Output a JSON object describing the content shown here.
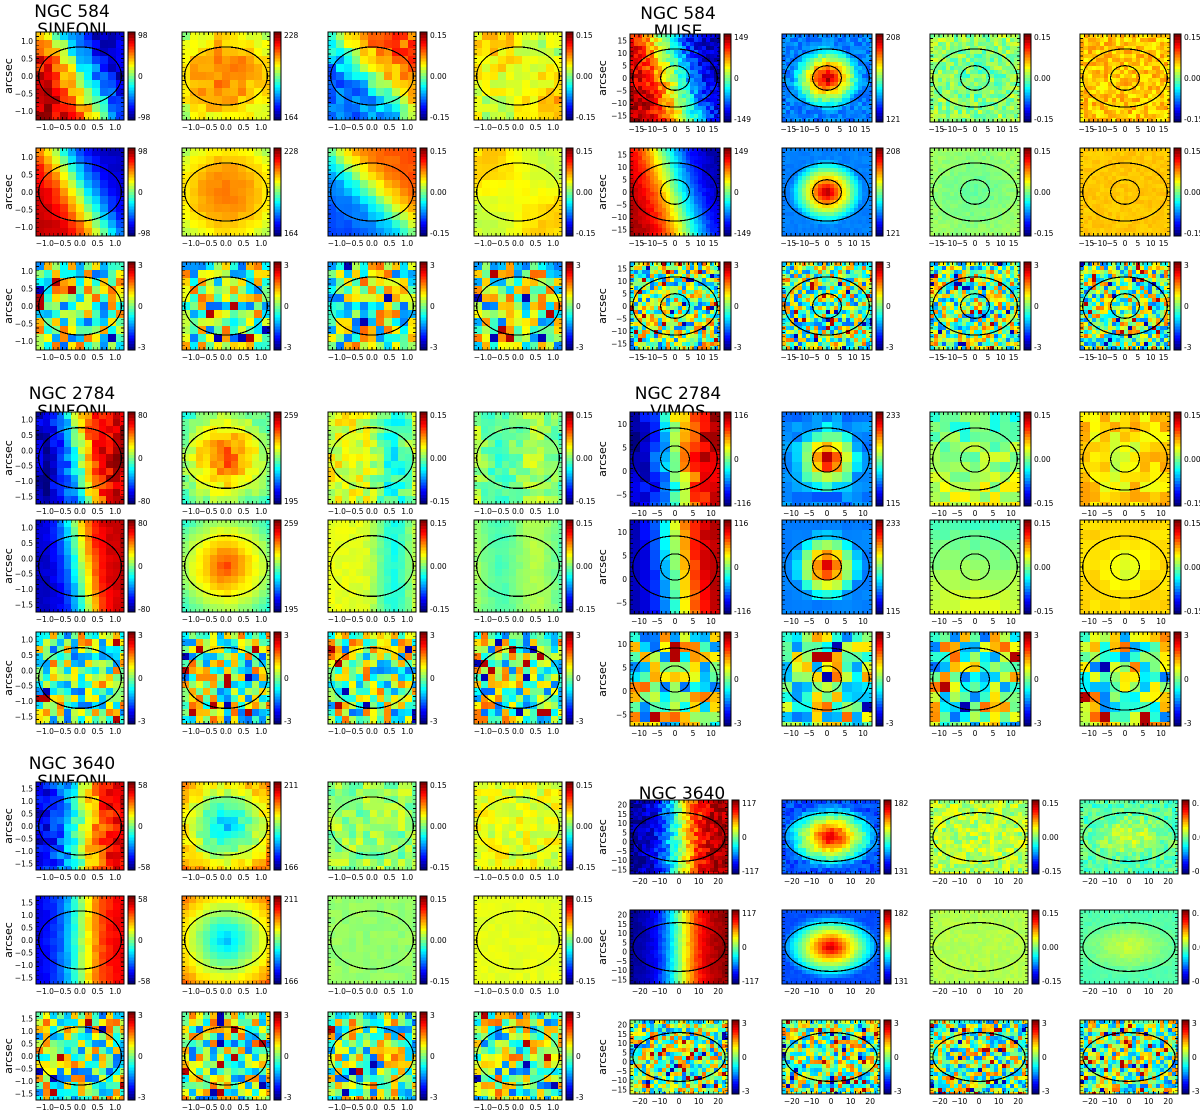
{
  "figure": {
    "ylabel": "arcsec",
    "colormap_hint": "jet",
    "row_labels_note": "",
    "blocks": [
      {
        "id": "ngc584-sinfoni",
        "title_line1": "NGC 584",
        "title_line2": "SINFONI",
        "x_ticks": [
          "−1.0",
          "−0.5",
          "0.0",
          "0.5",
          "1.0"
        ],
        "y_ticks": [
          "1.0",
          "0.5",
          "0.0",
          "−0.5",
          "−1.0"
        ],
        "colorbars": [
          {
            "top": "98",
            "mid": "0",
            "bot": "-98"
          },
          {
            "top": "228",
            "mid": "",
            "bot": "164"
          },
          {
            "top": "0.15",
            "mid": "0.00",
            "bot": "-0.15"
          },
          {
            "top": "0.15",
            "mid": "0.00",
            "bot": "-0.15"
          }
        ],
        "residual_colorbar": {
          "top": "3",
          "mid": "0",
          "bot": "-3"
        }
      },
      {
        "id": "ngc584-muse",
        "title_line1": "NGC 584",
        "title_line2": "MUSE",
        "x_ticks": [
          "−15",
          "−10",
          "−5",
          "0",
          "5",
          "10",
          "15"
        ],
        "y_ticks": [
          "15",
          "10",
          "5",
          "0",
          "−5",
          "−10",
          "−15"
        ],
        "colorbars": [
          {
            "top": "149",
            "mid": "0",
            "bot": "-149"
          },
          {
            "top": "208",
            "mid": "",
            "bot": "121"
          },
          {
            "top": "0.15",
            "mid": "0.00",
            "bot": "-0.15"
          },
          {
            "top": "0.15",
            "mid": "0.00",
            "bot": "-0.15"
          }
        ],
        "residual_colorbar": {
          "top": "3",
          "mid": "0",
          "bot": "-3"
        }
      },
      {
        "id": "ngc2784-sinfoni",
        "title_line1": "NGC 2784",
        "title_line2": "SINFONI",
        "x_ticks": [
          "−1.0",
          "−0.5",
          "0.0",
          "0.5",
          "1.0"
        ],
        "y_ticks": [
          "1.0",
          "0.5",
          "0.0",
          "−0.5",
          "−1.0",
          "−1.5"
        ],
        "colorbars": [
          {
            "top": "80",
            "mid": "0",
            "bot": "-80"
          },
          {
            "top": "259",
            "mid": "",
            "bot": "195"
          },
          {
            "top": "0.15",
            "mid": "0.00",
            "bot": "-0.15"
          },
          {
            "top": "0.15",
            "mid": "0.00",
            "bot": "-0.15"
          }
        ],
        "residual_colorbar": {
          "top": "3",
          "mid": "0",
          "bot": "-3"
        }
      },
      {
        "id": "ngc2784-vimos",
        "title_line1": "NGC 2784",
        "title_line2": "VIMOS",
        "x_ticks": [
          "−10",
          "−5",
          "0",
          "5",
          "10"
        ],
        "y_ticks": [
          "10",
          "5",
          "0",
          "−5"
        ],
        "colorbars": [
          {
            "top": "116",
            "mid": "0",
            "bot": "-116"
          },
          {
            "top": "233",
            "mid": "",
            "bot": "115"
          },
          {
            "top": "0.15",
            "mid": "0.00",
            "bot": "-0.15"
          },
          {
            "top": "0.15",
            "mid": "0.00",
            "bot": "-0.15"
          }
        ],
        "residual_colorbar": {
          "top": "3",
          "mid": "0",
          "bot": "-3"
        }
      },
      {
        "id": "ngc3640-sinfoni",
        "title_line1": "NGC 3640",
        "title_line2": "SINFONI",
        "x_ticks": [
          "−1.0",
          "−0.5",
          "0.0",
          "0.5",
          "1.0"
        ],
        "y_ticks": [
          "1.5",
          "1.0",
          "0.5",
          "0.0",
          "−0.5",
          "−1.0",
          "−1.5"
        ],
        "colorbars": [
          {
            "top": "58",
            "mid": "0",
            "bot": "-58"
          },
          {
            "top": "211",
            "mid": "",
            "bot": "166"
          },
          {
            "top": "0.15",
            "mid": "0.00",
            "bot": "-0.15"
          },
          {
            "top": "0.15",
            "mid": "0.00",
            "bot": "-0.15"
          }
        ],
        "residual_colorbar": {
          "top": "3",
          "mid": "0",
          "bot": "-3"
        }
      },
      {
        "id": "ngc3640-wide",
        "title_line1": "NGC 3640",
        "title_line2": "",
        "x_ticks": [
          "−20",
          "−10",
          "0",
          "10",
          "20"
        ],
        "y_ticks": [
          "20",
          "15",
          "10",
          "5",
          "0",
          "−5",
          "−10",
          "−15"
        ],
        "colorbars": [
          {
            "top": "117",
            "mid": "0",
            "bot": "-117"
          },
          {
            "top": "182",
            "mid": "",
            "bot": "131"
          },
          {
            "top": "0.15",
            "mid": "0.00",
            "bot": "-0.15"
          },
          {
            "top": "0.15",
            "mid": "0.00",
            "bot": "-0.15"
          }
        ],
        "residual_colorbar": {
          "top": "3",
          "mid": "0",
          "bot": "-3"
        }
      }
    ]
  }
}
